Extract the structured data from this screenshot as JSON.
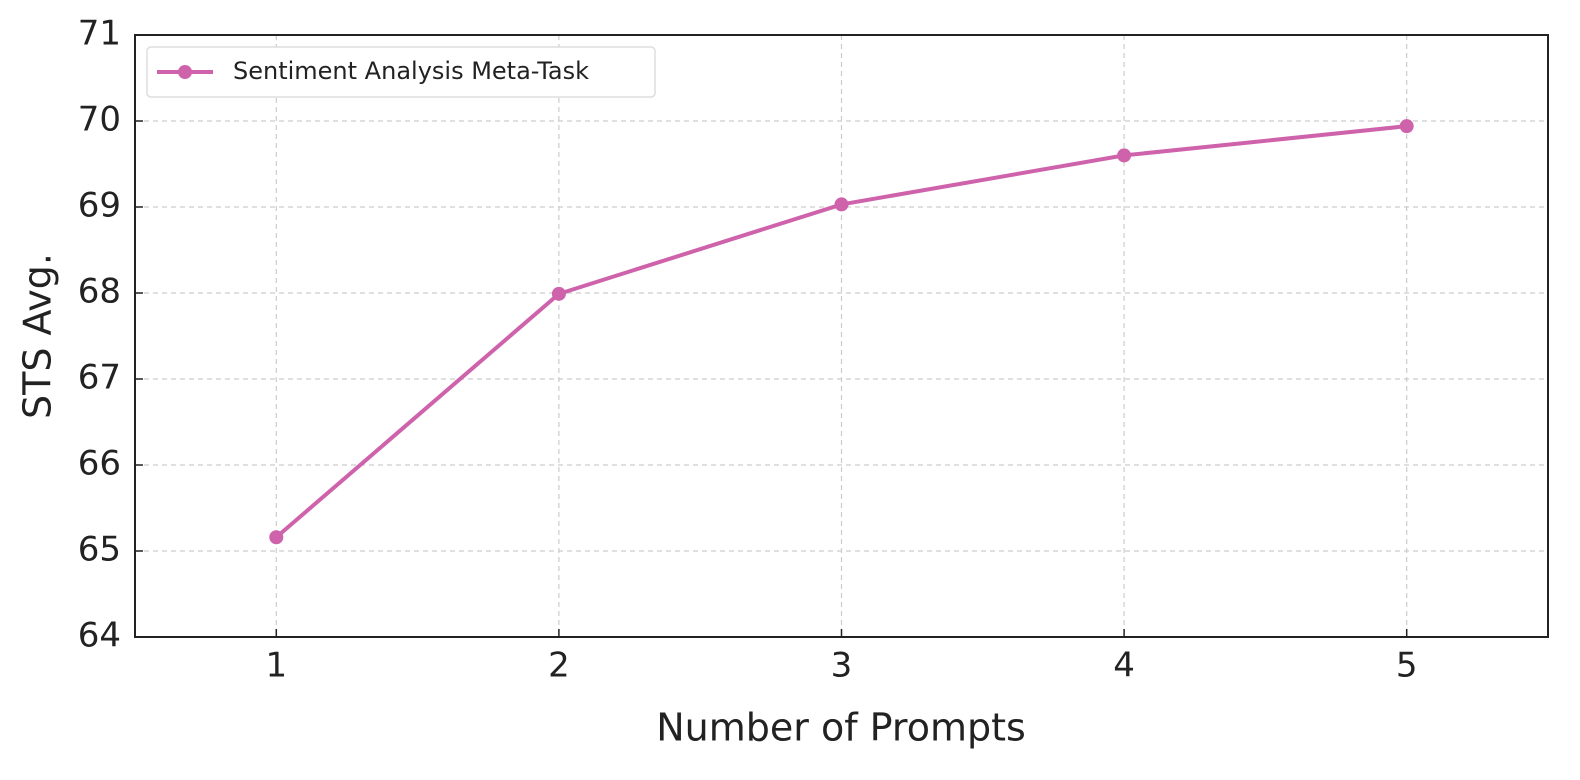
{
  "chart_data": {
    "type": "line",
    "x_label": "Number of Prompts",
    "y_label": "STS Avg.",
    "x": [
      1,
      2,
      3,
      4,
      5
    ],
    "series": [
      {
        "name": "Sentiment Analysis Meta-Task",
        "color": "#cf63ab",
        "values": [
          65.16,
          67.99,
          69.03,
          69.6,
          69.94
        ]
      }
    ],
    "xlim": [
      0.5,
      5.5
    ],
    "xticks": [
      1,
      2,
      3,
      4,
      5
    ],
    "ylim": [
      64,
      71
    ],
    "yticks": [
      64,
      65,
      66,
      67,
      68,
      69,
      70,
      71
    ],
    "grid": true,
    "legend": "upper-left"
  }
}
